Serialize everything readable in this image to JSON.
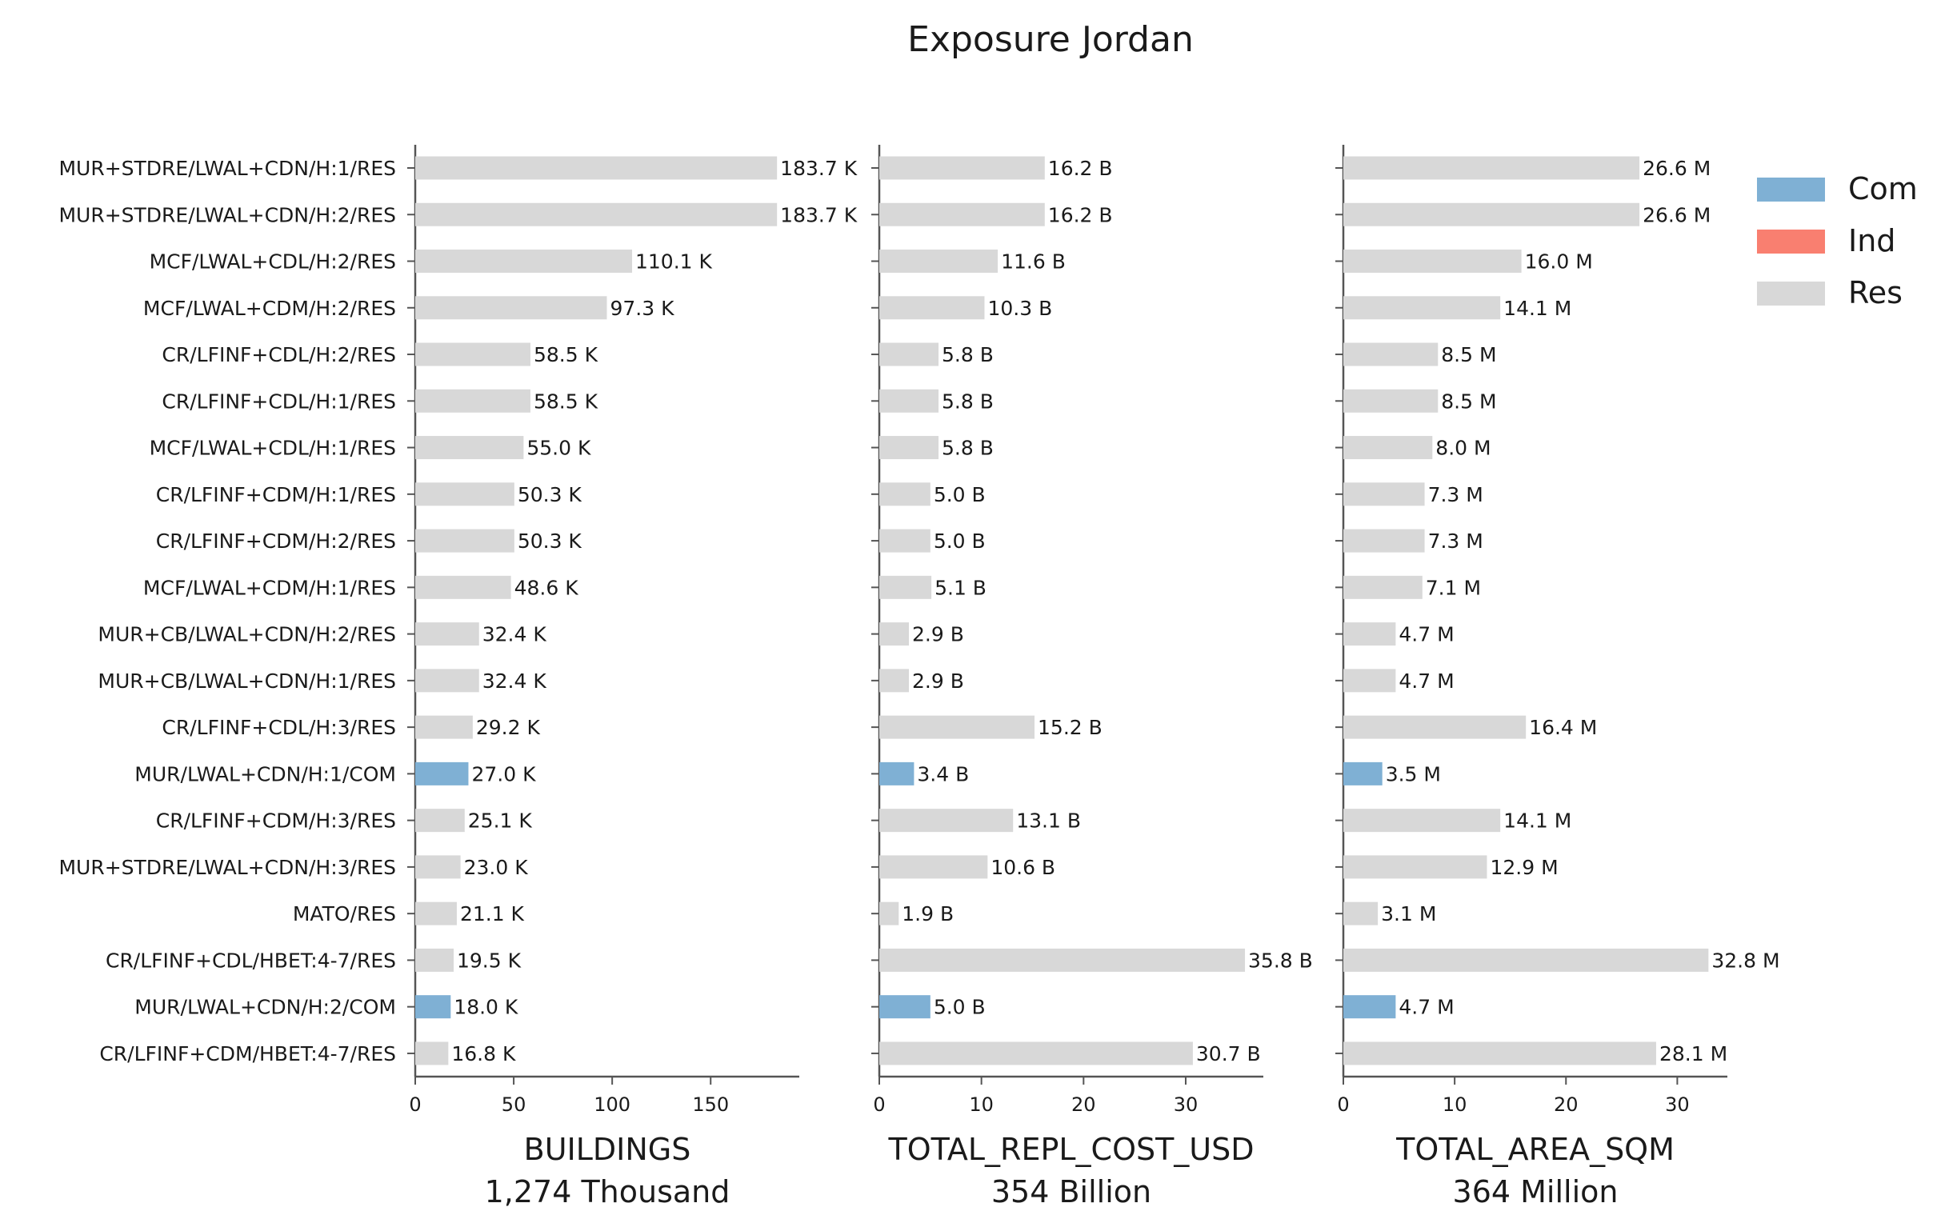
{
  "title": "Exposure Jordan",
  "legend": {
    "placement": "top-right",
    "entries": [
      {
        "label": "Com",
        "color": "#7fb0d4"
      },
      {
        "label": "Ind",
        "color": "#f97f70"
      },
      {
        "label": "Res",
        "color": "#d8d8d8"
      }
    ]
  },
  "chart_data": {
    "type": "bar",
    "orientation": "horizontal",
    "categories": [
      "MUR+STDRE/LWAL+CDN/H:1/RES",
      "MUR+STDRE/LWAL+CDN/H:2/RES",
      "MCF/LWAL+CDL/H:2/RES",
      "MCF/LWAL+CDM/H:2/RES",
      "CR/LFINF+CDL/H:2/RES",
      "CR/LFINF+CDL/H:1/RES",
      "MCF/LWAL+CDL/H:1/RES",
      "CR/LFINF+CDM/H:1/RES",
      "CR/LFINF+CDM/H:2/RES",
      "MCF/LWAL+CDM/H:1/RES",
      "MUR+CB/LWAL+CDN/H:2/RES",
      "MUR+CB/LWAL+CDN/H:1/RES",
      "CR/LFINF+CDL/H:3/RES",
      "MUR/LWAL+CDN/H:1/COM",
      "CR/LFINF+CDM/H:3/RES",
      "MUR+STDRE/LWAL+CDN/H:3/RES",
      "MATO/RES",
      "CR/LFINF+CDL/HBET:4-7/RES",
      "MUR/LWAL+CDN/H:2/COM",
      "CR/LFINF+CDM/HBET:4-7/RES"
    ],
    "occupancy": [
      "Res",
      "Res",
      "Res",
      "Res",
      "Res",
      "Res",
      "Res",
      "Res",
      "Res",
      "Res",
      "Res",
      "Res",
      "Res",
      "Com",
      "Res",
      "Res",
      "Res",
      "Res",
      "Com",
      "Res"
    ],
    "panels": [
      {
        "xlabel": "BUILDINGS",
        "total": "1,274 Thousand",
        "xlim": [
          0,
          195
        ],
        "xticks": [
          0,
          50,
          100,
          150
        ],
        "values": [
          183.7,
          183.7,
          110.1,
          97.3,
          58.5,
          58.5,
          55.0,
          50.3,
          50.3,
          48.6,
          32.4,
          32.4,
          29.2,
          27.0,
          25.1,
          23.0,
          21.1,
          19.5,
          18.0,
          16.8
        ],
        "labels": [
          "183.7 K",
          "183.7 K",
          "110.1 K",
          "97.3 K",
          "58.5 K",
          "58.5 K",
          "55.0 K",
          "50.3 K",
          "50.3 K",
          "48.6 K",
          "32.4 K",
          "32.4 K",
          "29.2 K",
          "27.0 K",
          "25.1 K",
          "23.0 K",
          "21.1 K",
          "19.5 K",
          "18.0 K",
          "16.8 K"
        ]
      },
      {
        "xlabel": "TOTAL_REPL_COST_USD",
        "total": "354 Billion",
        "xlim": [
          0,
          37.6
        ],
        "xticks": [
          0,
          10,
          20,
          30
        ],
        "values": [
          16.2,
          16.2,
          11.6,
          10.3,
          5.8,
          5.8,
          5.8,
          5.0,
          5.0,
          5.1,
          2.9,
          2.9,
          15.2,
          3.4,
          13.1,
          10.6,
          1.9,
          35.8,
          5.0,
          30.7
        ],
        "labels": [
          "16.2 B",
          "16.2 B",
          "11.6 B",
          "10.3 B",
          "5.8 B",
          "5.8 B",
          "5.8 B",
          "5.0 B",
          "5.0 B",
          "5.1 B",
          "2.9 B",
          "2.9 B",
          "15.2 B",
          "3.4 B",
          "13.1 B",
          "10.6 B",
          "1.9 B",
          "35.8 B",
          "5.0 B",
          "30.7 B"
        ]
      },
      {
        "xlabel": "TOTAL_AREA_SQM",
        "total": "364 Million",
        "xlim": [
          0,
          34.5
        ],
        "xticks": [
          0,
          10,
          20,
          30
        ],
        "values": [
          26.6,
          26.6,
          16.0,
          14.1,
          8.5,
          8.5,
          8.0,
          7.3,
          7.3,
          7.1,
          4.7,
          4.7,
          16.4,
          3.5,
          14.1,
          12.9,
          3.1,
          32.8,
          4.7,
          28.1
        ],
        "labels": [
          "26.6 M",
          "26.6 M",
          "16.0 M",
          "14.1 M",
          "8.5 M",
          "8.5 M",
          "8.0 M",
          "7.3 M",
          "7.3 M",
          "7.1 M",
          "4.7 M",
          "4.7 M",
          "16.4 M",
          "3.5 M",
          "14.1 M",
          "12.9 M",
          "3.1 M",
          "32.8 M",
          "4.7 M",
          "28.1 M"
        ]
      }
    ]
  }
}
